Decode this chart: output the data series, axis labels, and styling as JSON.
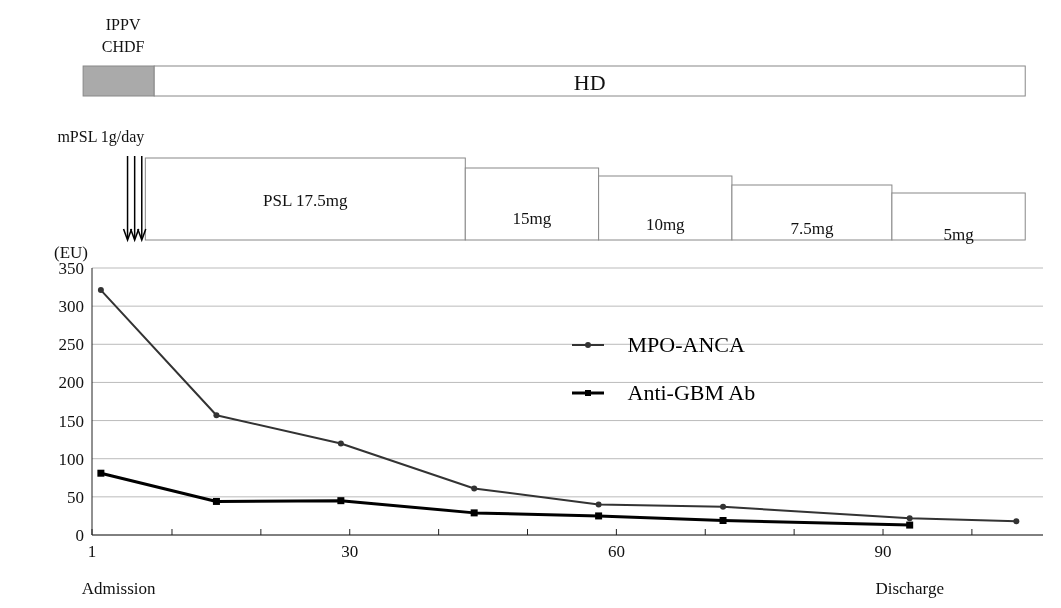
{
  "chart_data": {
    "type": "line",
    "ylabel": "(EU)",
    "xlim": [
      1,
      108
    ],
    "xticks": [
      1,
      {
        "value": 10,
        "label": null
      },
      {
        "value": 20,
        "label": null
      },
      30,
      {
        "value": 40,
        "label": null
      },
      {
        "value": 50,
        "label": null
      },
      60,
      {
        "value": 70,
        "label": null
      },
      {
        "value": 80,
        "label": null
      },
      90,
      {
        "value": 100,
        "label": null
      }
    ],
    "ylim": [
      0,
      350
    ],
    "yticks": [
      0,
      50,
      100,
      150,
      200,
      250,
      300,
      350
    ],
    "grid": "y",
    "legend": "right",
    "series": [
      {
        "name": "MPO-ANCA",
        "color": "#333333",
        "marker": "circle",
        "x": [
          2,
          15,
          29,
          44,
          58,
          72,
          93,
          105
        ],
        "values": [
          321,
          157,
          120,
          61,
          40,
          37,
          22,
          18
        ]
      },
      {
        "name": "Anti-GBM Ab",
        "color": "#000000",
        "marker": "square",
        "x": [
          2,
          15,
          29,
          44,
          58,
          72,
          93
        ],
        "values": [
          81,
          44,
          45,
          29,
          25,
          19,
          13
        ]
      }
    ],
    "annotations": [
      "IPPV",
      "CHDF",
      "HD",
      "mPSL 1g/day",
      "PSL 17.5mg",
      "15mg",
      "10mg",
      "7.5mg",
      "5mg",
      "Admission",
      "Discharge"
    ]
  }
}
